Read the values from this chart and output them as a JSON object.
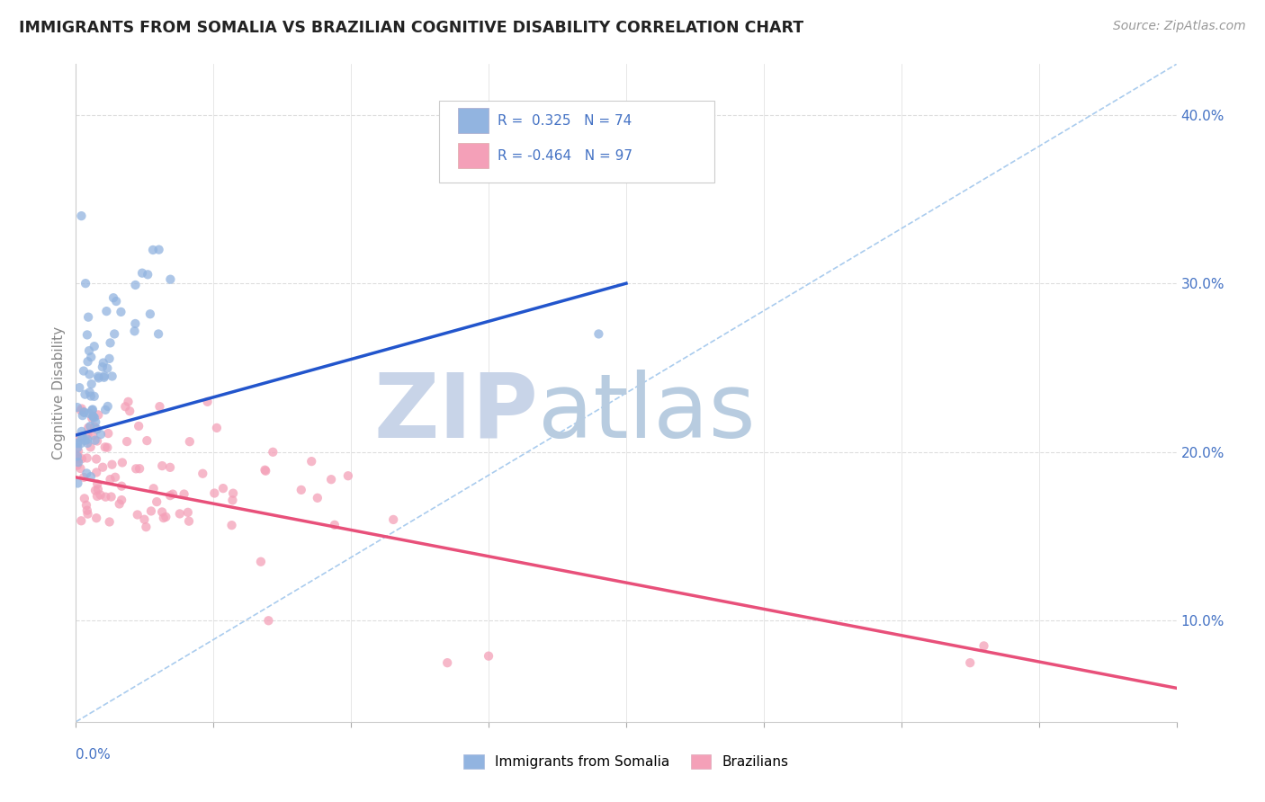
{
  "title": "IMMIGRANTS FROM SOMALIA VS BRAZILIAN COGNITIVE DISABILITY CORRELATION CHART",
  "source": "Source: ZipAtlas.com",
  "ylabel": "Cognitive Disability",
  "xlim": [
    0.0,
    0.8
  ],
  "ylim": [
    0.04,
    0.43
  ],
  "r_somalia": 0.325,
  "n_somalia": 74,
  "r_brazil": -0.464,
  "n_brazil": 97,
  "color_somalia": "#92b4e0",
  "color_brazil": "#f4a0b8",
  "trendline_somalia_color": "#2255cc",
  "trendline_brazil_color": "#e8507a",
  "diagonal_color": "#aaccee",
  "legend_label_somalia": "Immigrants from Somalia",
  "legend_label_brazil": "Brazilians",
  "background_color": "#ffffff",
  "grid_color": "#dddddd",
  "title_color": "#222222",
  "axis_label_color": "#4472c4",
  "watermark_zip_color": "#c8d4e8",
  "watermark_atlas_color": "#b8cce0"
}
